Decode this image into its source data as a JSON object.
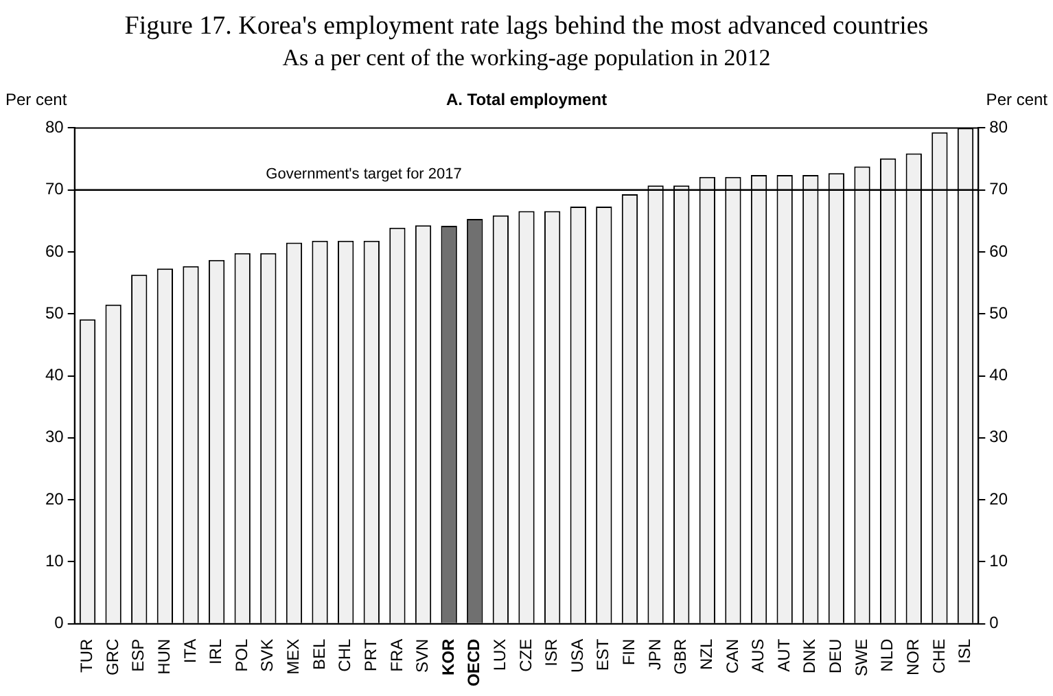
{
  "chart_data": {
    "type": "bar",
    "title": "Figure 17. Korea's employment rate lags behind the most advanced countries",
    "subtitle": "As a per cent of the working-age population in 2012",
    "annotations": [
      "A. Total employment"
    ],
    "ylabel": "Per cent",
    "y2label": "Per cent",
    "categories": [
      "TUR",
      "GRC",
      "ESP",
      "HUN",
      "ITA",
      "IRL",
      "POL",
      "SVK",
      "MEX",
      "BEL",
      "CHL",
      "PRT",
      "FRA",
      "SVN",
      "KOR",
      "OECD",
      "LUX",
      "CZE",
      "ISR",
      "USA",
      "EST",
      "FIN",
      "JPN",
      "GBR",
      "NZL",
      "CAN",
      "AUS",
      "AUT",
      "DNK",
      "DEU",
      "SWE",
      "NLD",
      "NOR",
      "CHE",
      "ISL"
    ],
    "values": [
      49.1,
      51.5,
      56.3,
      57.3,
      57.7,
      58.7,
      59.8,
      59.8,
      61.5,
      61.8,
      61.8,
      61.8,
      63.9,
      64.3,
      64.2,
      65.3,
      65.9,
      66.6,
      66.6,
      67.3,
      67.3,
      69.3,
      70.7,
      70.7,
      72.1,
      72.1,
      72.4,
      72.4,
      72.4,
      72.7,
      73.8,
      75.1,
      75.9,
      79.3,
      80.0
    ],
    "colors": [
      "#f0f0f0",
      "#f0f0f0",
      "#f0f0f0",
      "#f0f0f0",
      "#f0f0f0",
      "#f0f0f0",
      "#f0f0f0",
      "#f0f0f0",
      "#f0f0f0",
      "#f0f0f0",
      "#f0f0f0",
      "#f0f0f0",
      "#f0f0f0",
      "#f0f0f0",
      "#707070",
      "#707070",
      "#f0f0f0",
      "#f0f0f0",
      "#f0f0f0",
      "#f0f0f0",
      "#f0f0f0",
      "#f0f0f0",
      "#f0f0f0",
      "#f0f0f0",
      "#f0f0f0",
      "#f0f0f0",
      "#f0f0f0",
      "#f0f0f0",
      "#f0f0f0",
      "#f0f0f0",
      "#f0f0f0",
      "#f0f0f0",
      "#f0f0f0",
      "#f0f0f0",
      "#f0f0f0"
    ],
    "ylim": [
      0,
      80
    ],
    "yticks": [
      0,
      10,
      20,
      30,
      40,
      50,
      60,
      70,
      80
    ],
    "y2lim": [
      0,
      80
    ],
    "y2ticks": [
      0,
      10,
      20,
      30,
      40,
      50,
      60,
      70,
      80
    ],
    "ref_lines": [
      {
        "axis": "y",
        "value": 70,
        "label": "Government's target for 2017"
      }
    ],
    "grid": false,
    "legend": false
  }
}
